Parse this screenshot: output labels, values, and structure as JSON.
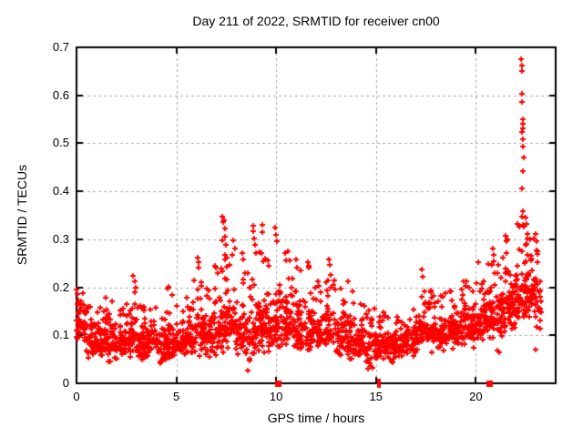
{
  "chart_data": {
    "type": "scatter",
    "title": "Day 211 of 2022, SRMTID for receiver cn00",
    "xlabel": "GPS time / hours",
    "ylabel": "SRMTID / TECUs",
    "xlim": [
      0,
      24
    ],
    "ylim": [
      0,
      0.7
    ],
    "xticks": [
      0,
      5,
      10,
      15,
      20
    ],
    "xtick_labels": [
      "0",
      "5",
      "10",
      "15",
      "20"
    ],
    "yticks": [
      0,
      0.1,
      0.2,
      0.3,
      0.4,
      0.5,
      0.6,
      0.7
    ],
    "ytick_labels": [
      "0",
      "0.1",
      "0.2",
      "0.3",
      "0.4",
      "0.5",
      "0.6",
      "0.7"
    ],
    "grid": true,
    "legend": "none",
    "marker": {
      "glyph": "+",
      "size": 7,
      "color": "#ff0000"
    },
    "background": "#ffffff",
    "axis_color": "#000000",
    "grid_color": "#a8a8a8",
    "band_bins_format": [
      "x0",
      "x1",
      "y_min",
      "y_typical",
      "y_max",
      "count"
    ],
    "band_bins": [
      [
        0.0,
        0.5,
        0.08,
        0.14,
        0.195,
        48
      ],
      [
        0.5,
        1.0,
        0.05,
        0.11,
        0.17,
        48
      ],
      [
        1.0,
        1.5,
        0.04,
        0.1,
        0.16,
        46
      ],
      [
        1.5,
        2.0,
        0.04,
        0.1,
        0.175,
        46
      ],
      [
        2.0,
        2.5,
        0.05,
        0.1,
        0.16,
        44
      ],
      [
        2.5,
        3.0,
        0.05,
        0.11,
        0.22,
        46
      ],
      [
        3.0,
        3.5,
        0.04,
        0.1,
        0.185,
        46
      ],
      [
        3.5,
        4.0,
        0.05,
        0.1,
        0.16,
        44
      ],
      [
        4.0,
        4.5,
        0.04,
        0.095,
        0.15,
        44
      ],
      [
        4.5,
        5.0,
        0.04,
        0.1,
        0.2,
        46
      ],
      [
        5.0,
        5.5,
        0.05,
        0.1,
        0.165,
        44
      ],
      [
        5.5,
        6.0,
        0.05,
        0.11,
        0.21,
        44
      ],
      [
        6.0,
        6.5,
        0.05,
        0.12,
        0.26,
        46
      ],
      [
        6.5,
        7.0,
        0.05,
        0.12,
        0.215,
        46
      ],
      [
        7.0,
        7.5,
        0.06,
        0.13,
        0.27,
        48
      ],
      [
        7.5,
        8.0,
        0.06,
        0.14,
        0.3,
        48
      ],
      [
        8.0,
        8.5,
        0.05,
        0.12,
        0.26,
        46
      ],
      [
        8.5,
        9.0,
        0.04,
        0.12,
        0.24,
        44
      ],
      [
        9.0,
        9.5,
        0.06,
        0.13,
        0.3,
        48
      ],
      [
        9.5,
        10.0,
        0.06,
        0.13,
        0.26,
        46
      ],
      [
        10.0,
        10.5,
        0.06,
        0.14,
        0.3,
        48
      ],
      [
        10.5,
        11.0,
        0.06,
        0.14,
        0.28,
        46
      ],
      [
        11.0,
        11.5,
        0.06,
        0.13,
        0.25,
        46
      ],
      [
        11.5,
        12.0,
        0.06,
        0.13,
        0.25,
        46
      ],
      [
        12.0,
        12.5,
        0.06,
        0.12,
        0.23,
        44
      ],
      [
        12.5,
        13.0,
        0.06,
        0.12,
        0.25,
        46
      ],
      [
        13.0,
        13.5,
        0.05,
        0.11,
        0.21,
        44
      ],
      [
        13.5,
        14.0,
        0.04,
        0.11,
        0.2,
        44
      ],
      [
        14.0,
        14.5,
        0.04,
        0.1,
        0.17,
        44
      ],
      [
        14.5,
        15.0,
        0.03,
        0.1,
        0.16,
        42
      ],
      [
        15.0,
        15.5,
        0.05,
        0.09,
        0.15,
        42
      ],
      [
        15.5,
        16.0,
        0.04,
        0.09,
        0.14,
        42
      ],
      [
        16.0,
        16.5,
        0.05,
        0.09,
        0.14,
        44
      ],
      [
        16.5,
        17.0,
        0.05,
        0.1,
        0.17,
        44
      ],
      [
        17.0,
        17.5,
        0.06,
        0.11,
        0.23,
        44
      ],
      [
        17.5,
        18.0,
        0.06,
        0.11,
        0.2,
        44
      ],
      [
        18.0,
        18.5,
        0.06,
        0.12,
        0.19,
        46
      ],
      [
        18.5,
        19.0,
        0.07,
        0.12,
        0.2,
        46
      ],
      [
        19.0,
        19.5,
        0.07,
        0.13,
        0.21,
        48
      ],
      [
        19.5,
        20.0,
        0.07,
        0.13,
        0.22,
        48
      ],
      [
        20.0,
        20.5,
        0.08,
        0.14,
        0.25,
        48
      ],
      [
        20.5,
        21.0,
        0.08,
        0.15,
        0.27,
        50
      ],
      [
        21.0,
        21.5,
        0.09,
        0.16,
        0.27,
        50
      ],
      [
        21.5,
        22.0,
        0.1,
        0.17,
        0.3,
        50
      ],
      [
        22.0,
        22.5,
        0.12,
        0.2,
        0.35,
        52
      ],
      [
        22.5,
        23.0,
        0.13,
        0.21,
        0.33,
        52
      ],
      [
        23.0,
        23.3,
        0.1,
        0.18,
        0.3,
        22
      ]
    ],
    "outliers": [
      [
        0.02,
        0.195
      ],
      [
        0.05,
        0.186
      ],
      [
        0.08,
        0.172
      ],
      [
        1.45,
        0.178
      ],
      [
        2.85,
        0.224
      ],
      [
        2.9,
        0.212
      ],
      [
        2.95,
        0.2
      ],
      [
        4.6,
        0.202
      ],
      [
        5.9,
        0.215
      ],
      [
        6.05,
        0.262
      ],
      [
        6.1,
        0.252
      ],
      [
        6.12,
        0.24
      ],
      [
        6.95,
        0.245
      ],
      [
        7.0,
        0.24
      ],
      [
        7.05,
        0.23
      ],
      [
        7.32,
        0.347
      ],
      [
        7.33,
        0.335
      ],
      [
        7.37,
        0.34
      ],
      [
        7.42,
        0.322
      ],
      [
        7.45,
        0.305
      ],
      [
        7.3,
        0.298
      ],
      [
        7.5,
        0.288
      ],
      [
        7.55,
        0.262
      ],
      [
        8.3,
        0.272
      ],
      [
        8.35,
        0.258
      ],
      [
        8.57,
        0.027
      ],
      [
        8.85,
        0.328
      ],
      [
        8.86,
        0.316
      ],
      [
        8.9,
        0.302
      ],
      [
        8.95,
        0.288
      ],
      [
        9.3,
        0.33
      ],
      [
        9.32,
        0.314
      ],
      [
        9.0,
        0.272
      ],
      [
        9.6,
        0.256
      ],
      [
        9.65,
        0.245
      ],
      [
        9.95,
        0.325
      ],
      [
        10.0,
        0.31
      ],
      [
        10.02,
        0.296
      ],
      [
        10.45,
        0.272
      ],
      [
        10.5,
        0.256
      ],
      [
        11.0,
        0.258
      ],
      [
        11.6,
        0.252
      ],
      [
        11.62,
        0.24
      ],
      [
        12.65,
        0.258
      ],
      [
        12.7,
        0.246
      ],
      [
        13.6,
        0.212
      ],
      [
        14.6,
        0.03
      ],
      [
        17.3,
        0.238
      ],
      [
        17.32,
        0.222
      ],
      [
        19.4,
        0.212
      ],
      [
        20.1,
        0.252
      ],
      [
        20.85,
        0.28
      ],
      [
        20.9,
        0.268
      ],
      [
        21.1,
        0.068
      ],
      [
        21.15,
        0.065
      ],
      [
        21.5,
        0.308
      ],
      [
        21.55,
        0.296
      ],
      [
        22.28,
        0.676
      ],
      [
        22.3,
        0.662
      ],
      [
        22.3,
        0.65
      ],
      [
        22.3,
        0.603
      ],
      [
        22.31,
        0.586
      ],
      [
        22.34,
        0.55
      ],
      [
        22.35,
        0.54
      ],
      [
        22.37,
        0.532
      ],
      [
        22.33,
        0.524
      ],
      [
        22.35,
        0.508
      ],
      [
        22.36,
        0.494
      ],
      [
        22.4,
        0.47
      ],
      [
        22.35,
        0.442
      ],
      [
        22.3,
        0.406
      ],
      [
        22.36,
        0.358
      ],
      [
        22.33,
        0.348
      ],
      [
        22.5,
        0.345
      ],
      [
        22.55,
        0.332
      ],
      [
        22.6,
        0.312
      ],
      [
        22.7,
        0.3
      ],
      [
        22.9,
        0.302
      ],
      [
        23.0,
        0.312
      ],
      [
        23.05,
        0.295
      ],
      [
        23.1,
        0.27
      ],
      [
        23.0,
        0.07
      ],
      [
        23.2,
        0.19
      ],
      [
        23.25,
        0.17
      ]
    ],
    "zero_squares": [
      10.1,
      20.66
    ],
    "zero_bars": [
      15.1,
      15.2
    ]
  }
}
